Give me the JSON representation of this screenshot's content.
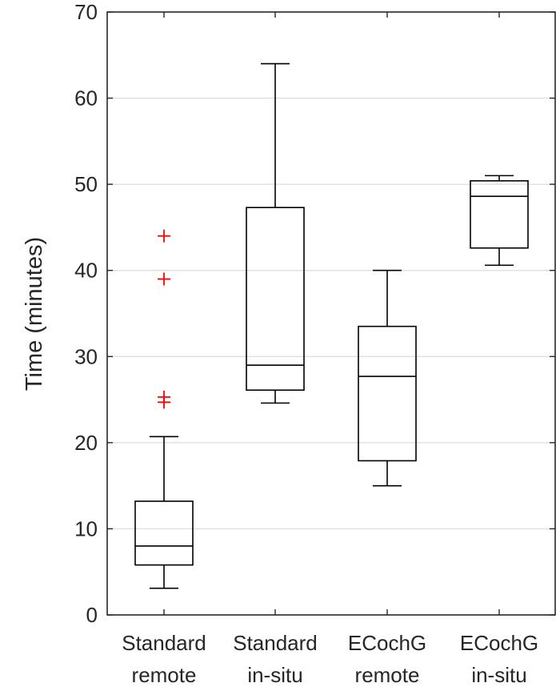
{
  "chart_data": {
    "type": "box",
    "title": "",
    "xlabel": "",
    "ylabel": "Time (minutes)",
    "ylim": [
      0,
      70
    ],
    "yticks": [
      0,
      10,
      20,
      30,
      40,
      50,
      60,
      70
    ],
    "grid": "horizontal",
    "categories": [
      {
        "line1": "Standard",
        "line2": "remote"
      },
      {
        "line1": "Standard",
        "line2": "in-situ"
      },
      {
        "line1": "ECochG",
        "line2": "remote"
      },
      {
        "line1": "ECochG",
        "line2": "in-situ"
      }
    ],
    "boxes": [
      {
        "whisker_low": 3.1,
        "q1": 5.8,
        "median": 8.0,
        "q3": 13.2,
        "whisker_high": 20.7,
        "outliers": [
          24.7,
          25.3,
          39.0,
          44.0
        ]
      },
      {
        "whisker_low": 24.6,
        "q1": 26.1,
        "median": 29.0,
        "q3": 47.3,
        "whisker_high": 64.0,
        "outliers": []
      },
      {
        "whisker_low": 15.0,
        "q1": 17.9,
        "median": 27.7,
        "q3": 33.5,
        "whisker_high": 40.0,
        "outliers": []
      },
      {
        "whisker_low": 40.6,
        "q1": 42.6,
        "median": 48.6,
        "q3": 50.4,
        "whisker_high": 51.0,
        "outliers": []
      }
    ],
    "colors": {
      "box": "#000000",
      "outlier": "#ff0000",
      "grid": "#dcdcdc",
      "axis": "#262626"
    }
  }
}
